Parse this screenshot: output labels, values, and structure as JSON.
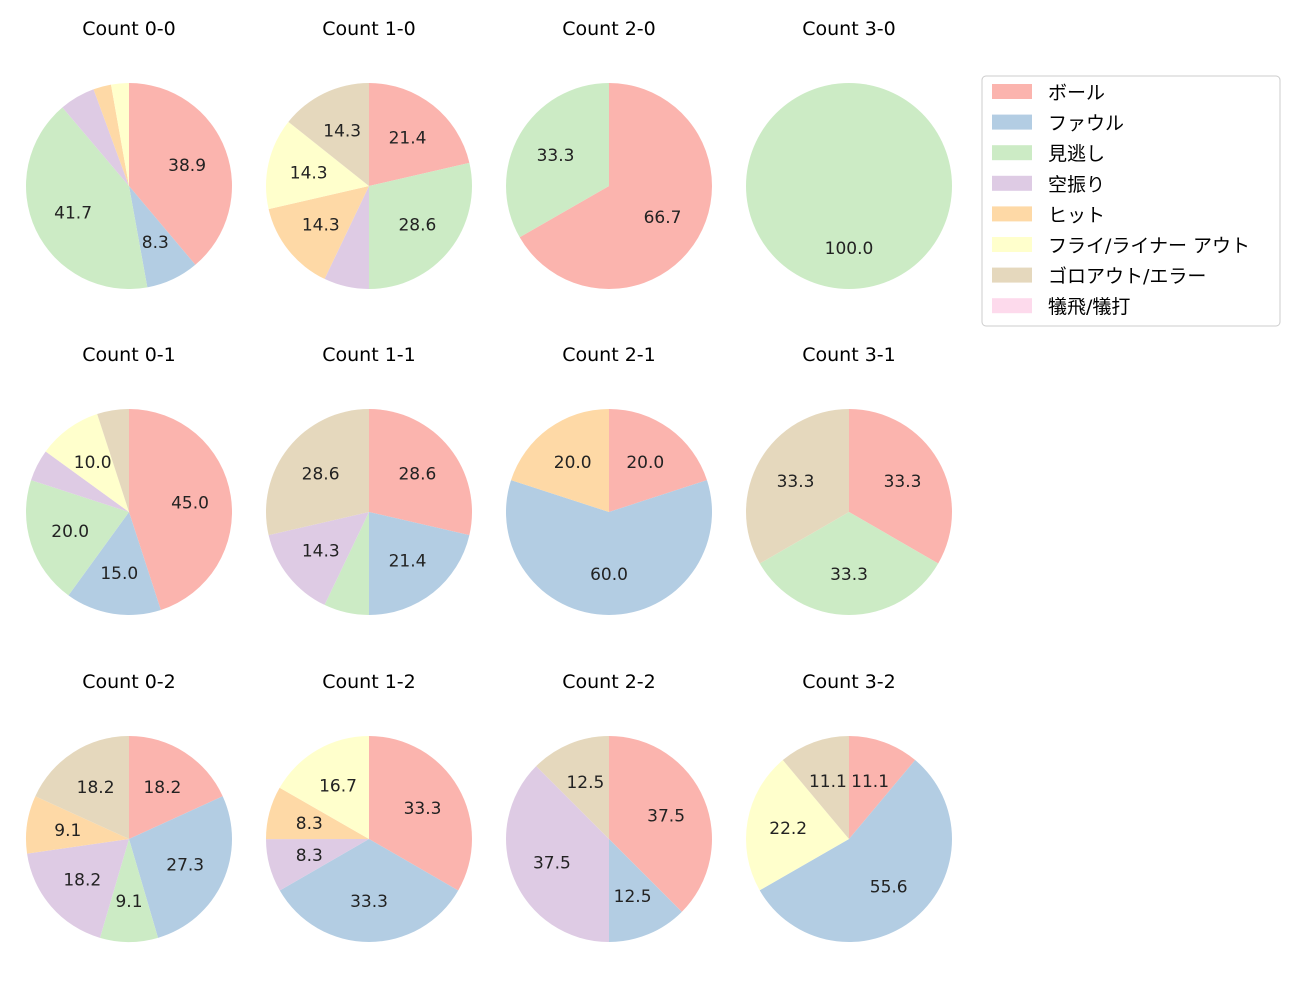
{
  "chart_data": {
    "type": "pie",
    "legend_position": "top-right",
    "legend": [
      {
        "label": "ボール",
        "color": "#fbb4ae"
      },
      {
        "label": "ファウル",
        "color": "#b3cde3"
      },
      {
        "label": "見逃し",
        "color": "#ccebc5"
      },
      {
        "label": "空振り",
        "color": "#decbe4"
      },
      {
        "label": "ヒット",
        "color": "#fed9a6"
      },
      {
        "label": "フライ/ライナー アウト",
        "color": "#ffffcc"
      },
      {
        "label": "ゴロアウト/エラー",
        "color": "#e5d8bd"
      },
      {
        "label": "犠飛/犠打",
        "color": "#fddaec"
      }
    ],
    "pies": [
      {
        "title": "Count 0-0",
        "slices": [
          {
            "cat": 0,
            "value": 38.9,
            "label": "38.9"
          },
          {
            "cat": 1,
            "value": 8.3,
            "label": "8.3"
          },
          {
            "cat": 2,
            "value": 41.7,
            "label": "41.7"
          },
          {
            "cat": 3,
            "value": 5.6,
            "label": ""
          },
          {
            "cat": 4,
            "value": 2.8,
            "label": ""
          },
          {
            "cat": 5,
            "value": 2.8,
            "label": ""
          }
        ]
      },
      {
        "title": "Count 1-0",
        "slices": [
          {
            "cat": 0,
            "value": 21.4,
            "label": "21.4"
          },
          {
            "cat": 2,
            "value": 28.6,
            "label": "28.6"
          },
          {
            "cat": 3,
            "value": 7.1,
            "label": ""
          },
          {
            "cat": 4,
            "value": 14.3,
            "label": "14.3"
          },
          {
            "cat": 5,
            "value": 14.3,
            "label": "14.3"
          },
          {
            "cat": 6,
            "value": 14.3,
            "label": "14.3"
          }
        ]
      },
      {
        "title": "Count 2-0",
        "slices": [
          {
            "cat": 0,
            "value": 66.7,
            "label": "66.7"
          },
          {
            "cat": 2,
            "value": 33.3,
            "label": "33.3"
          }
        ]
      },
      {
        "title": "Count 3-0",
        "slices": [
          {
            "cat": 2,
            "value": 100.0,
            "label": "100.0"
          }
        ]
      },
      {
        "title": "Count 0-1",
        "slices": [
          {
            "cat": 0,
            "value": 45.0,
            "label": "45.0"
          },
          {
            "cat": 1,
            "value": 15.0,
            "label": "15.0"
          },
          {
            "cat": 2,
            "value": 20.0,
            "label": "20.0"
          },
          {
            "cat": 3,
            "value": 5.0,
            "label": ""
          },
          {
            "cat": 5,
            "value": 10.0,
            "label": "10.0"
          },
          {
            "cat": 6,
            "value": 5.0,
            "label": ""
          }
        ]
      },
      {
        "title": "Count 1-1",
        "slices": [
          {
            "cat": 0,
            "value": 28.6,
            "label": "28.6"
          },
          {
            "cat": 1,
            "value": 21.4,
            "label": "21.4"
          },
          {
            "cat": 2,
            "value": 7.1,
            "label": ""
          },
          {
            "cat": 3,
            "value": 14.3,
            "label": "14.3"
          },
          {
            "cat": 6,
            "value": 28.6,
            "label": "28.6"
          }
        ]
      },
      {
        "title": "Count 2-1",
        "slices": [
          {
            "cat": 0,
            "value": 20.0,
            "label": "20.0"
          },
          {
            "cat": 1,
            "value": 60.0,
            "label": "60.0"
          },
          {
            "cat": 4,
            "value": 20.0,
            "label": "20.0"
          }
        ]
      },
      {
        "title": "Count 3-1",
        "slices": [
          {
            "cat": 0,
            "value": 33.3,
            "label": "33.3"
          },
          {
            "cat": 2,
            "value": 33.3,
            "label": "33.3"
          },
          {
            "cat": 6,
            "value": 33.3,
            "label": "33.3"
          }
        ]
      },
      {
        "title": "Count 0-2",
        "slices": [
          {
            "cat": 0,
            "value": 18.2,
            "label": "18.2"
          },
          {
            "cat": 1,
            "value": 27.3,
            "label": "27.3"
          },
          {
            "cat": 2,
            "value": 9.1,
            "label": "9.1"
          },
          {
            "cat": 3,
            "value": 18.2,
            "label": "18.2"
          },
          {
            "cat": 4,
            "value": 9.1,
            "label": "9.1"
          },
          {
            "cat": 6,
            "value": 18.2,
            "label": "18.2"
          }
        ]
      },
      {
        "title": "Count 1-2",
        "slices": [
          {
            "cat": 0,
            "value": 33.3,
            "label": "33.3"
          },
          {
            "cat": 1,
            "value": 33.3,
            "label": "33.3"
          },
          {
            "cat": 3,
            "value": 8.3,
            "label": "8.3"
          },
          {
            "cat": 4,
            "value": 8.3,
            "label": "8.3"
          },
          {
            "cat": 5,
            "value": 16.7,
            "label": "16.7"
          }
        ]
      },
      {
        "title": "Count 2-2",
        "slices": [
          {
            "cat": 0,
            "value": 37.5,
            "label": "37.5"
          },
          {
            "cat": 1,
            "value": 12.5,
            "label": "12.5"
          },
          {
            "cat": 3,
            "value": 37.5,
            "label": "37.5"
          },
          {
            "cat": 6,
            "value": 12.5,
            "label": "12.5"
          }
        ]
      },
      {
        "title": "Count 3-2",
        "slices": [
          {
            "cat": 0,
            "value": 11.1,
            "label": "11.1"
          },
          {
            "cat": 1,
            "value": 55.6,
            "label": "55.6"
          },
          {
            "cat": 5,
            "value": 22.2,
            "label": "22.2"
          },
          {
            "cat": 6,
            "value": 11.1,
            "label": "11.1"
          }
        ]
      }
    ]
  }
}
